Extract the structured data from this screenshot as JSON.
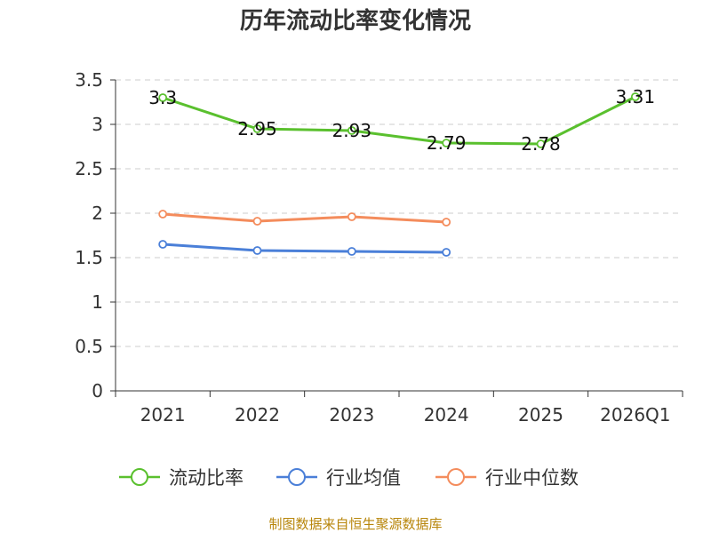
{
  "chart_data": {
    "type": "line",
    "title": "历年流动比率变化情况",
    "categories": [
      "2021",
      "2022",
      "2023",
      "2024",
      "2025",
      "2026Q1"
    ],
    "ylim": [
      0,
      3.5
    ],
    "yticks": [
      "0",
      "0.5",
      "1",
      "1.5",
      "2",
      "2.5",
      "3",
      "3.5"
    ],
    "grid": true,
    "legend_position": "bottom",
    "series": [
      {
        "name": "流动比率",
        "color": "#5ac02e",
        "values": [
          3.3,
          2.95,
          2.93,
          2.79,
          2.78,
          3.31
        ],
        "labels": [
          "3.3",
          "2.95",
          "2.93",
          "2.79",
          "2.78",
          "3.31"
        ]
      },
      {
        "name": "行业均值",
        "color": "#4a7fd8",
        "values": [
          1.65,
          1.58,
          1.57,
          1.56,
          null,
          null
        ]
      },
      {
        "name": "行业中位数",
        "color": "#f48c5c",
        "values": [
          1.99,
          1.91,
          1.96,
          1.9,
          null,
          null
        ]
      }
    ],
    "source": "制图数据来自恒生聚源数据库"
  }
}
